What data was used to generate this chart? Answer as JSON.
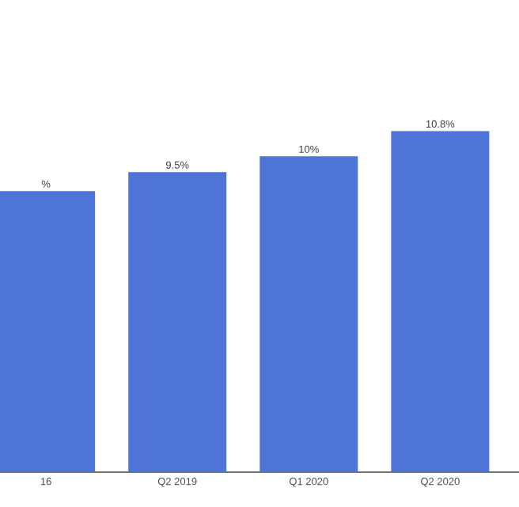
{
  "chart_data": {
    "type": "bar",
    "categories": [
      "16",
      "Q2 2019",
      "Q1 2020",
      "Q2 2020"
    ],
    "values": [
      8.9,
      9.5,
      10,
      10.8
    ],
    "value_labels": [
      "%",
      "9.5%",
      "10%",
      "10.8%"
    ],
    "color": "#4f74d8",
    "tick_labels": "x"
  }
}
